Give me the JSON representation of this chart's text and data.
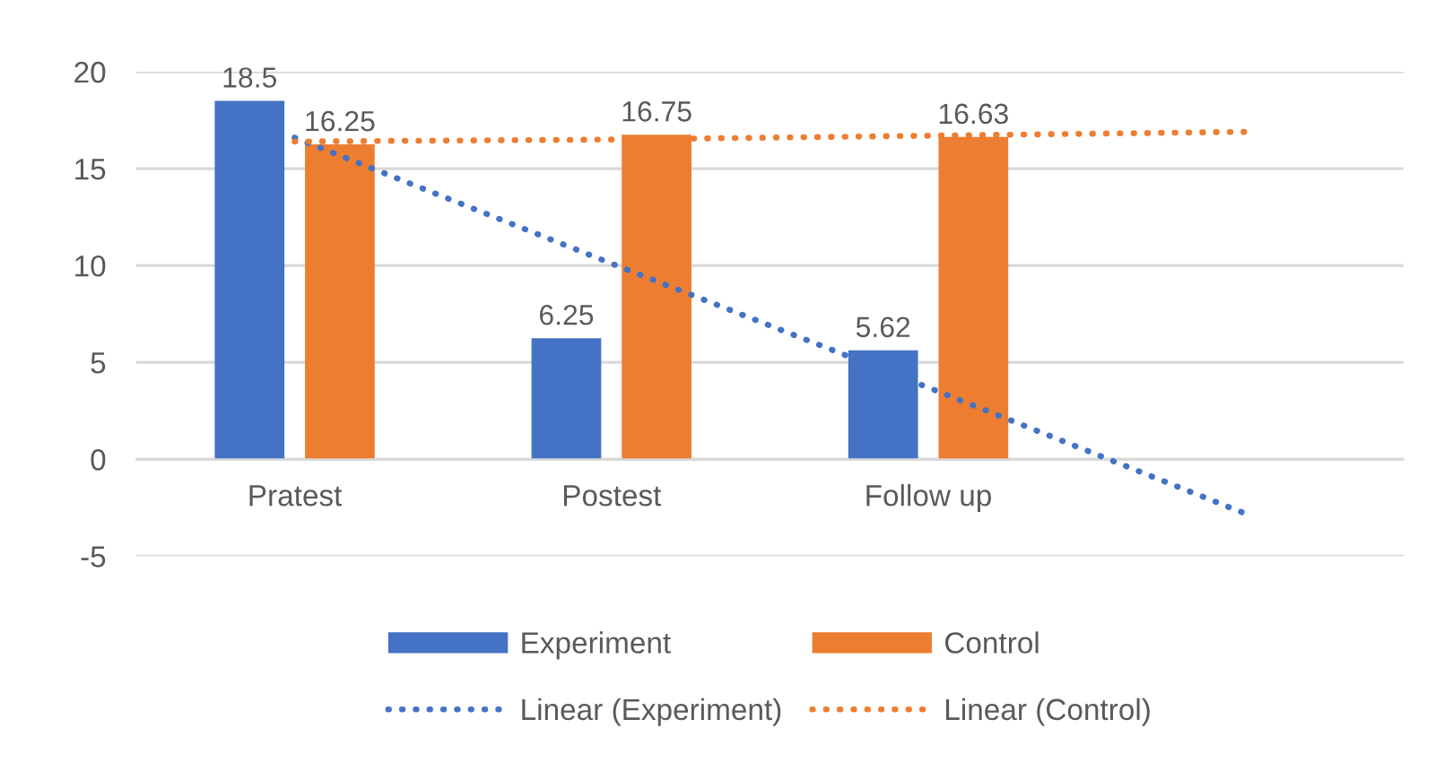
{
  "chart_data": {
    "type": "bar",
    "categories": [
      "Pratest",
      "Postest",
      "Follow up",
      null
    ],
    "series": [
      {
        "name": "Experiment",
        "color": "#4472c4",
        "values": [
          18.5,
          6.25,
          5.62,
          null
        ],
        "value_labels": [
          "18.5",
          "6.25",
          "5.62",
          null
        ]
      },
      {
        "name": "Control",
        "color": "#ed7d31",
        "values": [
          16.25,
          16.75,
          16.63,
          null
        ],
        "value_labels": [
          "16.25",
          "16.75",
          "16.63",
          null
        ]
      },
      {
        "name": "Linear (Experiment)",
        "type": "line",
        "line_style": "dotted",
        "color": "#4472c4",
        "values": [
          16.6,
          10.1,
          3.7,
          -2.8
        ]
      },
      {
        "name": "Linear (Control)",
        "type": "line",
        "line_style": "dotted",
        "color": "#ed7d31",
        "values": [
          16.4,
          16.5,
          16.7,
          16.9
        ]
      }
    ],
    "ylim": [
      -5,
      20
    ],
    "yticks": [
      -5,
      0,
      5,
      10,
      15,
      20
    ],
    "grid": "y",
    "legend": "bottom"
  }
}
